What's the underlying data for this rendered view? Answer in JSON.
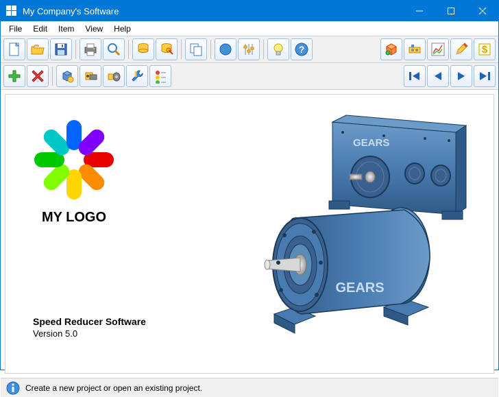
{
  "window": {
    "title": "My Company's Software",
    "titlebar_bg": "#0078d7",
    "titlebar_fg": "#ffffff"
  },
  "menu": {
    "items": [
      "File",
      "Edit",
      "Item",
      "View",
      "Help"
    ]
  },
  "toolbar_row1": {
    "groups": [
      [
        "new",
        "open",
        "save"
      ],
      [
        "print",
        "zoom"
      ],
      [
        "db1",
        "db2"
      ],
      [
        "copy"
      ],
      [
        "globe",
        "sliders"
      ],
      [
        "bulb",
        "help"
      ]
    ],
    "right": [
      "cube-tool",
      "machine-tool",
      "chart-tool",
      "pencil-tool",
      "money-tool"
    ]
  },
  "toolbar_row2": {
    "groups": [
      [
        "add",
        "remove"
      ],
      [
        "block1",
        "block2",
        "block3",
        "wrench",
        "traffic"
      ]
    ],
    "right": [
      "first",
      "prev",
      "next",
      "last"
    ]
  },
  "logo": {
    "text": "MY LOGO",
    "petal_colors": [
      "#e60000",
      "#ff8c00",
      "#ffd700",
      "#7fff00",
      "#00c800",
      "#00c8c8",
      "#0066ff",
      "#8000ff"
    ]
  },
  "product": {
    "name": "Speed Reducer Software",
    "version": "Version 5.0"
  },
  "gearbox": {
    "label": "GEARS",
    "body_color": "#4a7bb0",
    "body_color_dark": "#2f5a87",
    "body_color_light": "#6b9bc8",
    "shaft_color": "#d0d0d0"
  },
  "status": {
    "text": "Create a new project or open an existing project."
  },
  "colors": {
    "toolbar_btn_border": "#a0c0e0",
    "toolbar_bg": "#f0f0f0"
  }
}
